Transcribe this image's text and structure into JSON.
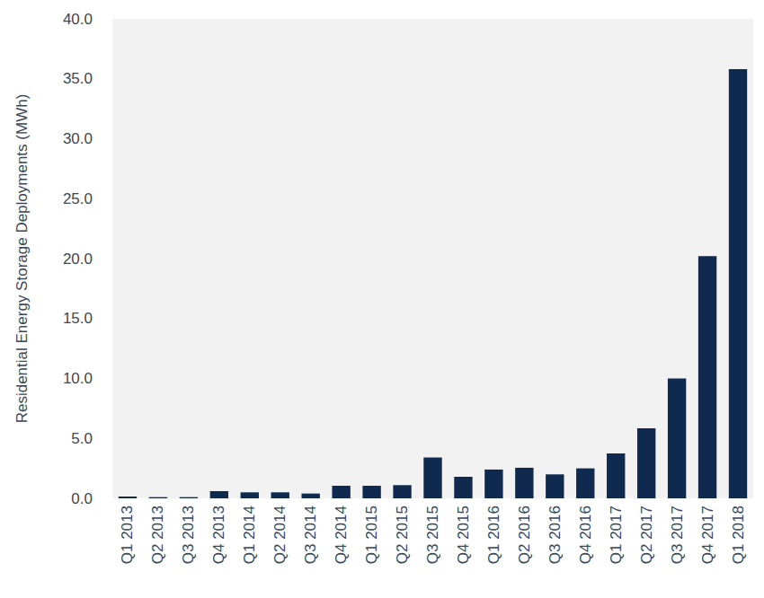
{
  "chart_data": {
    "type": "bar",
    "y_label": "Residential Energy Storage Deployments (MWh)",
    "categories": [
      "Q1 2013",
      "Q2 2013",
      "Q3 2013",
      "Q4 2013",
      "Q1 2014",
      "Q2 2014",
      "Q3 2014",
      "Q4 2014",
      "Q1 2015",
      "Q2 2015",
      "Q3 2015",
      "Q4 2015",
      "Q1 2016",
      "Q2 2016",
      "Q3 2016",
      "Q4 2016",
      "Q1 2017",
      "Q2 2017",
      "Q3 2017",
      "Q4 2017",
      "Q1 2018"
    ],
    "values": [
      0.15,
      0.1,
      0.1,
      0.6,
      0.5,
      0.5,
      0.4,
      1.05,
      1.05,
      1.1,
      3.4,
      1.8,
      2.4,
      2.55,
      2.0,
      2.5,
      3.75,
      5.85,
      10.0,
      20.2,
      35.8
    ],
    "color": "#0f2a4e",
    "ylim": [
      0,
      40
    ],
    "yticks": [
      {
        "value": 0,
        "label": "0.0"
      },
      {
        "value": 5,
        "label": "5.0"
      },
      {
        "value": 10,
        "label": "10.0"
      },
      {
        "value": 15,
        "label": "15.0"
      },
      {
        "value": 20,
        "label": "20.0"
      },
      {
        "value": 25,
        "label": "25.0"
      },
      {
        "value": 30,
        "label": "30.0"
      },
      {
        "value": 35,
        "label": "35.0"
      },
      {
        "value": 40,
        "label": "40.0"
      }
    ],
    "grid": false
  }
}
